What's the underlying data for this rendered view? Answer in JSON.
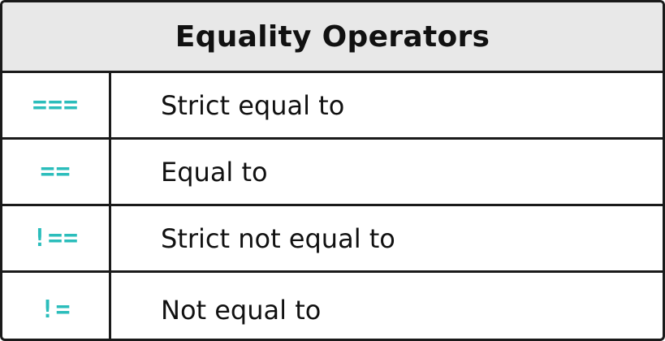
{
  "table": {
    "title": "Equality Operators",
    "accent_color": "#2bbdbb",
    "rows": [
      {
        "operator": "===",
        "description": "Strict equal to"
      },
      {
        "operator": "==",
        "description": "Equal to"
      },
      {
        "operator": "!==",
        "description": "Strict not equal to"
      },
      {
        "operator": "!=",
        "description": "Not equal to"
      }
    ]
  }
}
